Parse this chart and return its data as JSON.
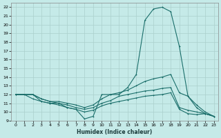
{
  "xlabel": "Humidex (Indice chaleur)",
  "bg_color": "#c5eae8",
  "grid_color": "#aacfcc",
  "line_color": "#1a6e6a",
  "xlim": [
    -0.5,
    23.5
  ],
  "ylim": [
    9,
    22.5
  ],
  "xticks": [
    0,
    1,
    2,
    3,
    4,
    5,
    6,
    7,
    8,
    9,
    10,
    11,
    12,
    13,
    14,
    15,
    16,
    17,
    18,
    19,
    20,
    21,
    22,
    23
  ],
  "yticks": [
    9,
    10,
    11,
    12,
    13,
    14,
    15,
    16,
    17,
    18,
    19,
    20,
    21,
    22
  ],
  "line1_x": [
    0,
    1,
    2,
    3,
    4,
    5,
    6,
    7,
    8,
    9,
    10,
    11,
    12,
    13,
    14,
    15,
    16,
    17,
    18,
    19,
    20,
    21,
    22,
    23
  ],
  "line1_y": [
    12,
    12,
    11.5,
    11.2,
    11.0,
    11.0,
    10.5,
    10.3,
    9.2,
    9.5,
    12.0,
    12.0,
    12.0,
    12.8,
    14.3,
    20.5,
    21.8,
    22.0,
    21.5,
    17.5,
    11.8,
    10.5,
    9.8,
    9.5
  ],
  "line2_x": [
    0,
    2,
    3,
    4,
    5,
    6,
    7,
    8,
    9,
    10,
    11,
    12,
    13,
    14,
    15,
    16,
    17,
    18,
    19,
    20,
    21,
    22,
    23
  ],
  "line2_y": [
    12,
    12,
    11.5,
    11.2,
    11.2,
    11.0,
    10.8,
    10.5,
    10.8,
    11.5,
    12.0,
    12.2,
    12.5,
    13.0,
    13.5,
    13.8,
    14.0,
    14.3,
    12.2,
    11.8,
    10.8,
    10.0,
    9.5
  ],
  "line3_x": [
    0,
    2,
    3,
    4,
    5,
    6,
    7,
    8,
    9,
    10,
    11,
    12,
    13,
    14,
    15,
    16,
    17,
    18,
    19,
    20,
    21,
    22,
    23
  ],
  "line3_y": [
    12,
    12,
    11.5,
    11.2,
    11.0,
    10.8,
    10.5,
    10.3,
    10.5,
    11.0,
    11.3,
    11.8,
    12.0,
    12.2,
    12.4,
    12.5,
    12.7,
    12.8,
    10.5,
    10.2,
    10.0,
    9.8,
    9.5
  ],
  "line4_x": [
    0,
    2,
    3,
    4,
    5,
    6,
    7,
    8,
    9,
    10,
    11,
    12,
    13,
    14,
    15,
    16,
    17,
    18,
    19,
    20,
    21,
    22,
    23
  ],
  "line4_y": [
    12,
    12,
    11.2,
    11.0,
    10.8,
    10.5,
    10.3,
    10.0,
    10.2,
    10.7,
    11.0,
    11.2,
    11.4,
    11.6,
    11.8,
    11.9,
    12.0,
    12.2,
    10.3,
    9.8,
    9.7,
    9.8,
    9.5
  ]
}
